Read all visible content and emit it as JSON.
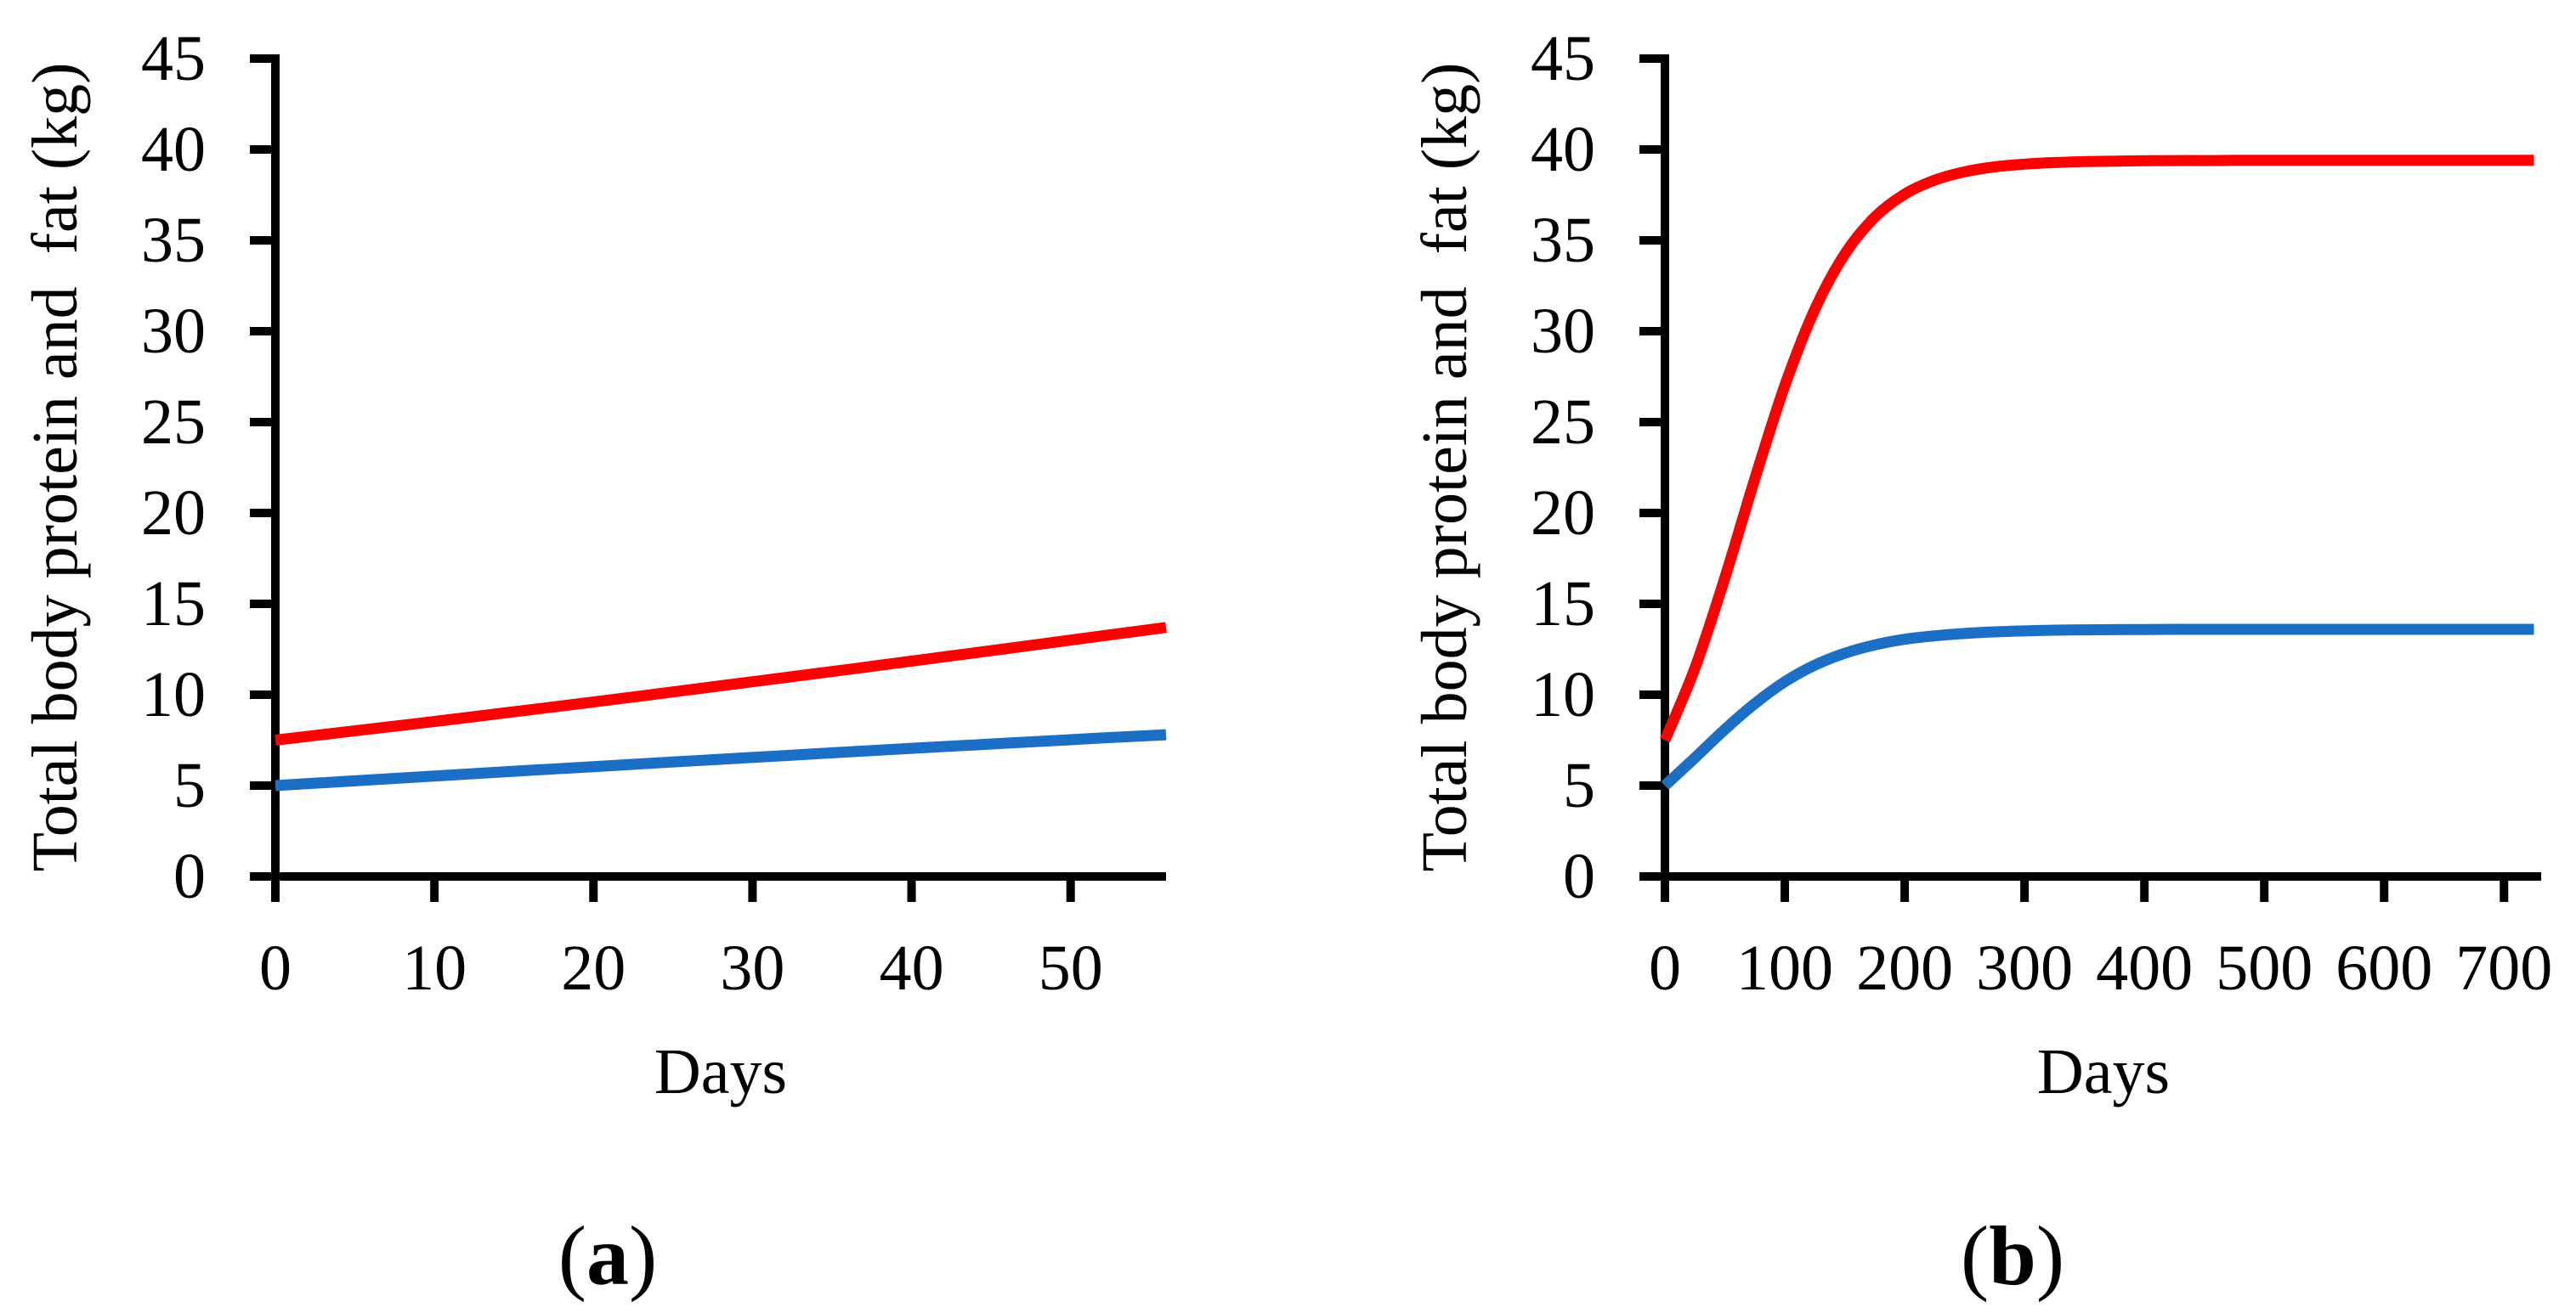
{
  "figure": {
    "background": "#ffffff",
    "colors": {
      "red": "#fe0000",
      "blue": "#1b70c6",
      "axis": "#000000",
      "text": "#000000"
    }
  },
  "chart_data": [
    {
      "type": "line",
      "panel": "a",
      "sublabel": {
        "open": "(",
        "letter": "a",
        "close": ")"
      },
      "xlabel": "Days",
      "ylabel": "Total body protein and  fat (kg)",
      "xlim": [
        0,
        56
      ],
      "ylim": [
        0,
        45
      ],
      "x_ticks": [
        0,
        10,
        20,
        30,
        40,
        50
      ],
      "y_ticks": [
        0,
        5,
        10,
        15,
        20,
        25,
        30,
        35,
        40,
        45
      ],
      "grid": false,
      "legend": "none",
      "series": [
        {
          "name": "red curve",
          "color": "red",
          "x": [
            0,
            4,
            8,
            12,
            16,
            20,
            24,
            28,
            32,
            36,
            40,
            44,
            48,
            52,
            56
          ],
          "y": [
            7.5,
            7.91,
            8.32,
            8.74,
            9.17,
            9.6,
            10.04,
            10.49,
            10.94,
            11.39,
            11.85,
            12.31,
            12.77,
            13.24,
            13.7
          ]
        },
        {
          "name": "blue curve",
          "color": "blue",
          "x": [
            0,
            4,
            8,
            12,
            16,
            20,
            24,
            28,
            32,
            36,
            40,
            44,
            48,
            52,
            56
          ],
          "y": [
            5.0,
            5.21,
            5.42,
            5.63,
            5.84,
            6.04,
            6.25,
            6.45,
            6.65,
            6.85,
            7.05,
            7.24,
            7.43,
            7.62,
            7.8
          ]
        }
      ]
    },
    {
      "type": "line",
      "panel": "b",
      "sublabel": {
        "open": "(",
        "letter": "b",
        "close": ")"
      },
      "xlabel": "Days",
      "ylabel": "Total body protein and  fat (kg)",
      "xlim": [
        0,
        731
      ],
      "ylim": [
        0,
        45
      ],
      "x_ticks": [
        0,
        100,
        200,
        300,
        400,
        500,
        600,
        700
      ],
      "y_ticks": [
        0,
        5,
        10,
        15,
        20,
        25,
        30,
        35,
        40,
        45
      ],
      "grid": false,
      "legend": "none",
      "series": [
        {
          "name": "red curve",
          "color": "red",
          "x": [
            0,
            25,
            50,
            75,
            100,
            125,
            150,
            175,
            200,
            225,
            250,
            275,
            300,
            325,
            350,
            375,
            400,
            425,
            450,
            475,
            500,
            525,
            550,
            575,
            600,
            625,
            650,
            675,
            700,
            725
          ],
          "y": [
            7.5,
            11.46,
            16.43,
            21.88,
            27.0,
            31.19,
            34.24,
            36.27,
            37.54,
            38.31,
            38.77,
            39.04,
            39.19,
            39.28,
            39.33,
            39.36,
            39.38,
            39.39,
            39.39,
            39.4,
            39.4,
            39.4,
            39.4,
            39.4,
            39.4,
            39.4,
            39.4,
            39.4,
            39.4,
            39.4
          ]
        },
        {
          "name": "blue curve",
          "color": "blue",
          "x": [
            0,
            25,
            50,
            75,
            100,
            125,
            150,
            175,
            200,
            225,
            250,
            275,
            300,
            325,
            350,
            375,
            400,
            425,
            450,
            475,
            500,
            525,
            550,
            575,
            600,
            625,
            650,
            675,
            700,
            725
          ],
          "y": [
            5.0,
            6.53,
            8.09,
            9.51,
            10.71,
            11.62,
            12.28,
            12.74,
            13.05,
            13.24,
            13.37,
            13.46,
            13.51,
            13.55,
            13.57,
            13.58,
            13.59,
            13.6,
            13.6,
            13.6,
            13.6,
            13.6,
            13.6,
            13.6,
            13.6,
            13.6,
            13.6,
            13.6,
            13.6,
            13.6
          ]
        }
      ]
    }
  ]
}
